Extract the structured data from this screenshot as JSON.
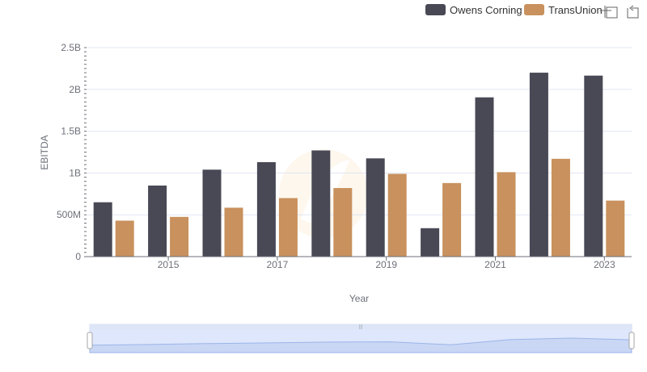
{
  "chart_data": {
    "type": "bar",
    "xlabel": "Year",
    "ylabel": "EBITDA",
    "categories": [
      "2014",
      "2015",
      "2016",
      "2017",
      "2018",
      "2019",
      "2020",
      "2021",
      "2022",
      "2023"
    ],
    "x_tick_labels": [
      "2015",
      "2017",
      "2019",
      "2021",
      "2023"
    ],
    "y_tick_labels": [
      "0",
      "500M",
      "1B",
      "1.5B",
      "2B",
      "2.5B"
    ],
    "ylim": [
      0,
      2500000000
    ],
    "grid": true,
    "legend_position": "top-right",
    "series": [
      {
        "name": "Owens Corning",
        "color": "#484955",
        "values": [
          650000000,
          850000000,
          1040000000,
          1130000000,
          1270000000,
          1175000000,
          340000000,
          1905000000,
          2200000000,
          2165000000
        ]
      },
      {
        "name": "TransUnion",
        "color": "#c8915d",
        "values": [
          430000000,
          475000000,
          585000000,
          700000000,
          820000000,
          990000000,
          880000000,
          1010000000,
          1170000000,
          670000000
        ]
      }
    ]
  },
  "toolbox": {
    "zoom_icon": "zoom-select-icon",
    "reset_icon": "zoom-reset-icon"
  }
}
